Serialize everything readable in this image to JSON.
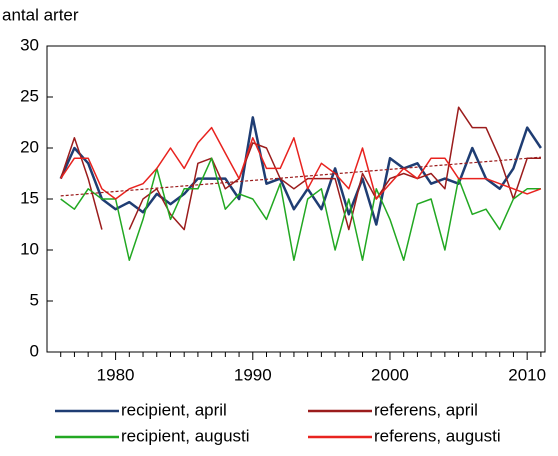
{
  "chart_data": {
    "type": "line",
    "y_label": "antal arter",
    "x": [
      1976,
      1977,
      1978,
      1979,
      1980,
      1981,
      1982,
      1983,
      1984,
      1985,
      1986,
      1987,
      1988,
      1989,
      1990,
      1991,
      1992,
      1993,
      1994,
      1995,
      1996,
      1997,
      1998,
      1999,
      2000,
      2001,
      2002,
      2003,
      2004,
      2005,
      2006,
      2007,
      2008,
      2009,
      2010,
      2011
    ],
    "series": [
      {
        "name": "recipient, april",
        "color": "#1f3d73",
        "values": [
          17,
          20,
          18.5,
          15,
          14,
          14.7,
          13.7,
          15.5,
          14.5,
          15.5,
          17,
          17,
          17,
          15,
          23,
          16.5,
          17,
          14,
          16,
          14,
          18,
          13.5,
          17,
          12.5,
          19,
          18,
          18.5,
          16.5,
          17,
          16.5,
          20,
          17,
          16,
          18,
          22,
          20
        ]
      },
      {
        "name": "referens, april",
        "color": "#9b1c1c",
        "values": [
          17,
          21,
          17,
          12,
          null,
          12,
          15,
          16,
          13.5,
          12,
          18.5,
          19,
          16,
          17,
          20.5,
          20,
          17,
          16,
          17,
          17,
          17,
          12,
          17.5,
          15,
          17,
          17.5,
          17,
          17.5,
          16,
          24,
          22,
          22,
          19,
          15,
          19,
          19
        ]
      },
      {
        "name": "recipient, augusti",
        "color": "#22a822",
        "values": [
          15,
          14,
          16,
          15,
          15,
          9,
          13,
          18,
          13,
          16,
          16,
          19,
          14,
          15.5,
          15,
          13,
          16.5,
          9,
          15,
          16,
          10,
          15,
          9,
          16,
          13,
          9,
          14.5,
          15,
          10,
          17,
          13.5,
          14,
          12,
          15,
          16,
          16
        ]
      },
      {
        "name": "referens, augusti",
        "color": "#e8231f",
        "values": [
          17,
          19,
          19,
          16,
          15,
          16,
          16.5,
          18,
          20,
          18,
          20.5,
          22,
          19.5,
          17,
          21,
          18,
          18,
          21,
          16,
          18.5,
          17.5,
          16,
          20,
          15,
          16.5,
          18,
          17,
          19,
          19,
          17,
          17,
          17,
          16.5,
          16,
          15.5,
          16
        ]
      }
    ],
    "trend": {
      "x": [
        1976,
        2011
      ],
      "values": [
        15.3,
        19.1
      ],
      "color": "#9b1c1c"
    },
    "xlim": [
      1975,
      2011.3
    ],
    "xticks": [
      1980,
      1990,
      2000,
      2010
    ],
    "xminorticks": [
      1976,
      1977,
      1978,
      1979,
      1981,
      1982,
      1983,
      1984,
      1985,
      1986,
      1987,
      1988,
      1989,
      1991,
      1992,
      1993,
      1994,
      1995,
      1996,
      1997,
      1998,
      1999,
      2001,
      2002,
      2003,
      2004,
      2005,
      2006,
      2007,
      2008,
      2009,
      2011
    ],
    "ylim": [
      0,
      30
    ],
    "yticks": [
      0,
      5,
      10,
      15,
      20,
      25,
      30
    ],
    "grid": false
  }
}
